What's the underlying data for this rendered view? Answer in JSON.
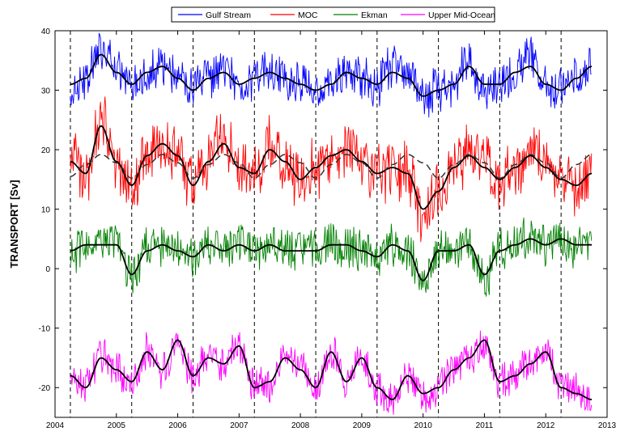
{
  "chart_data": {
    "type": "line",
    "ylabel": "TRANSPORT [Sv]",
    "xlim": [
      2004,
      2013
    ],
    "ylim": [
      -25,
      40
    ],
    "xticks": [
      2004,
      2005,
      2006,
      2007,
      2008,
      2009,
      2010,
      2011,
      2012,
      2013
    ],
    "yticks": [
      -20,
      -10,
      0,
      10,
      20,
      30,
      40
    ],
    "vertical_dashed_lines_x": [
      2004.25,
      2005.25,
      2006.25,
      2007.25,
      2008.25,
      2009.25,
      2010.25,
      2011.25,
      2012.25
    ],
    "grid": false,
    "legend_placement": "top-center",
    "x": [
      2004.25,
      2004.5,
      2004.75,
      2005.0,
      2005.25,
      2005.5,
      2005.75,
      2006.0,
      2006.25,
      2006.5,
      2006.75,
      2007.0,
      2007.25,
      2007.5,
      2007.75,
      2008.0,
      2008.25,
      2008.5,
      2008.75,
      2009.0,
      2009.25,
      2009.5,
      2009.75,
      2010.0,
      2010.25,
      2010.5,
      2010.75,
      2011.0,
      2011.25,
      2011.5,
      2011.75,
      2012.0,
      2012.25,
      2012.5,
      2012.75
    ],
    "series": [
      {
        "name": "Gulf Stream",
        "color": "#0000ff",
        "values": [
          30,
          32,
          37,
          33,
          31,
          33,
          34,
          32,
          30,
          32,
          33,
          31,
          32,
          33,
          32,
          31,
          30,
          31,
          33,
          32,
          31,
          34,
          33,
          29,
          30,
          31,
          35,
          30,
          31,
          33,
          36,
          31,
          30,
          32,
          35
        ],
        "smoothed": [
          31,
          32,
          36,
          33,
          31,
          33,
          34,
          32,
          30,
          32,
          33,
          31,
          32,
          33,
          32,
          31,
          30,
          31,
          33,
          32,
          31,
          33,
          32,
          29,
          30,
          31,
          34,
          31,
          31,
          33,
          34,
          31,
          30,
          32,
          34
        ]
      },
      {
        "name": "MOC",
        "color": "#ff0000",
        "values": [
          19,
          16,
          25,
          18,
          14,
          19,
          22,
          19,
          14,
          18,
          22,
          17,
          16,
          21,
          18,
          15,
          17,
          19,
          21,
          18,
          16,
          17,
          16,
          9,
          13,
          17,
          20,
          18,
          15,
          17,
          19,
          18,
          15,
          14,
          16
        ],
        "smoothed": [
          18,
          16,
          24,
          18,
          14,
          19,
          21,
          19,
          14,
          18,
          21,
          17,
          16,
          20,
          18,
          15,
          17,
          19,
          20,
          18,
          16,
          17,
          16,
          10,
          13,
          17,
          19,
          17,
          15,
          17,
          19,
          17,
          15,
          14,
          16
        ],
        "seasonal": [
          15.5,
          17.5,
          19.2,
          17.8,
          15.2,
          17.5,
          19.2,
          17.8,
          15.2,
          17.5,
          19.2,
          17.8,
          15.2,
          17.5,
          19.2,
          17.8,
          15.2,
          17.5,
          19.2,
          17.8,
          15.2,
          17.5,
          19.2,
          17.8,
          15.2,
          17.5,
          19.2,
          17.8,
          15.2,
          17.5,
          19.2,
          17.8,
          15.2,
          17.5,
          19.2
        ]
      },
      {
        "name": "Ekman",
        "color": "#008000",
        "values": [
          2,
          4,
          4,
          5,
          -1,
          3,
          4,
          3,
          2,
          4,
          3,
          4,
          3,
          4,
          3,
          3,
          3,
          4,
          4,
          3,
          2,
          4,
          3,
          -2,
          3,
          3,
          4,
          -2,
          3,
          4,
          5,
          4,
          5,
          4,
          4
        ],
        "smoothed": [
          3,
          4,
          4,
          4,
          -1,
          3,
          4,
          3,
          2,
          4,
          3,
          4,
          3,
          4,
          3,
          3,
          3,
          4,
          4,
          3,
          2,
          4,
          3,
          -2,
          3,
          3,
          4,
          -1,
          3,
          4,
          5,
          4,
          5,
          4,
          4
        ]
      },
      {
        "name": "Upper Mid-Ocean",
        "color": "#ff00ff",
        "values": [
          -18,
          -20,
          -15,
          -17,
          -19,
          -14,
          -17,
          -12,
          -18,
          -15,
          -16,
          -13,
          -20,
          -19,
          -15,
          -17,
          -20,
          -14,
          -19,
          -15,
          -20,
          -22,
          -18,
          -21,
          -20,
          -17,
          -15,
          -12,
          -19,
          -18,
          -16,
          -14,
          -20,
          -21,
          -22
        ],
        "smoothed": [
          -18,
          -20,
          -15,
          -17,
          -19,
          -14,
          -17,
          -12,
          -18,
          -15,
          -16,
          -13,
          -20,
          -19,
          -15,
          -17,
          -20,
          -14,
          -19,
          -15,
          -20,
          -22,
          -18,
          -21,
          -20,
          -17,
          -15,
          -12,
          -19,
          -18,
          -16,
          -14,
          -20,
          -21,
          -22
        ]
      }
    ]
  }
}
